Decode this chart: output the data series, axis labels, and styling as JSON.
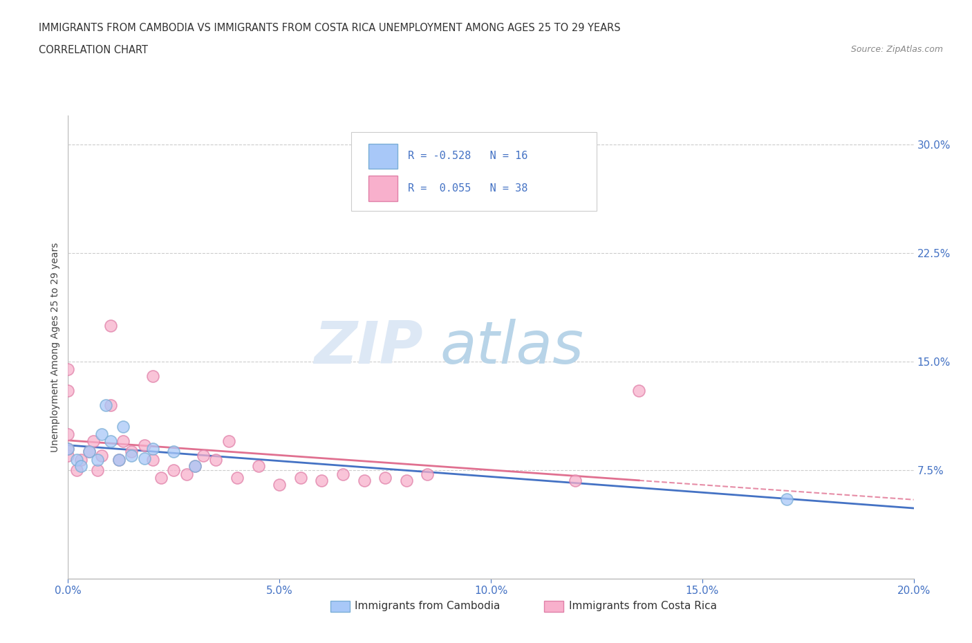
{
  "title_line1": "IMMIGRANTS FROM CAMBODIA VS IMMIGRANTS FROM COSTA RICA UNEMPLOYMENT AMONG AGES 25 TO 29 YEARS",
  "title_line2": "CORRELATION CHART",
  "source_text": "Source: ZipAtlas.com",
  "ylabel": "Unemployment Among Ages 25 to 29 years",
  "xlim": [
    0.0,
    0.2
  ],
  "ylim": [
    0.0,
    0.32
  ],
  "xtick_labels": [
    "0.0%",
    "5.0%",
    "10.0%",
    "15.0%",
    "20.0%"
  ],
  "xtick_values": [
    0.0,
    0.05,
    0.1,
    0.15,
    0.2
  ],
  "ytick_labels": [
    "7.5%",
    "15.0%",
    "22.5%",
    "30.0%"
  ],
  "ytick_values": [
    0.075,
    0.15,
    0.225,
    0.3
  ],
  "watermark_zip": "ZIP",
  "watermark_atlas": "atlas",
  "cambodia_color": "#a8c8f8",
  "cambodia_edge_color": "#7aaed6",
  "costa_rica_color": "#f8b0cc",
  "costa_rica_edge_color": "#e080a8",
  "cambodia_line_color": "#4472c4",
  "costa_rica_line_color": "#e07090",
  "scatter_size": 150,
  "cambodia_scatter_x": [
    0.0,
    0.002,
    0.003,
    0.005,
    0.007,
    0.008,
    0.009,
    0.01,
    0.012,
    0.013,
    0.015,
    0.018,
    0.02,
    0.025,
    0.03,
    0.17
  ],
  "cambodia_scatter_y": [
    0.09,
    0.082,
    0.078,
    0.088,
    0.082,
    0.1,
    0.12,
    0.095,
    0.082,
    0.105,
    0.085,
    0.083,
    0.09,
    0.088,
    0.078,
    0.055
  ],
  "costa_rica_scatter_x": [
    0.0,
    0.0,
    0.0,
    0.0,
    0.0,
    0.002,
    0.003,
    0.005,
    0.006,
    0.007,
    0.008,
    0.01,
    0.01,
    0.012,
    0.013,
    0.015,
    0.018,
    0.02,
    0.02,
    0.022,
    0.025,
    0.028,
    0.03,
    0.032,
    0.035,
    0.038,
    0.04,
    0.045,
    0.05,
    0.055,
    0.06,
    0.065,
    0.07,
    0.075,
    0.08,
    0.085,
    0.12,
    0.135
  ],
  "costa_rica_scatter_y": [
    0.085,
    0.09,
    0.1,
    0.13,
    0.145,
    0.075,
    0.082,
    0.088,
    0.095,
    0.075,
    0.085,
    0.12,
    0.175,
    0.082,
    0.095,
    0.088,
    0.092,
    0.082,
    0.14,
    0.07,
    0.075,
    0.072,
    0.078,
    0.085,
    0.082,
    0.095,
    0.07,
    0.078,
    0.065,
    0.07,
    0.068,
    0.072,
    0.068,
    0.07,
    0.068,
    0.072,
    0.068,
    0.13
  ],
  "grid_color": "#cccccc",
  "background_color": "#ffffff",
  "title_color": "#333333",
  "axis_label_color": "#4472c4",
  "legend_text_color": "#4472c4",
  "legend_r1_val": "-0.528",
  "legend_n1_val": "16",
  "legend_r2_val": "0.055",
  "legend_n2_val": "38"
}
